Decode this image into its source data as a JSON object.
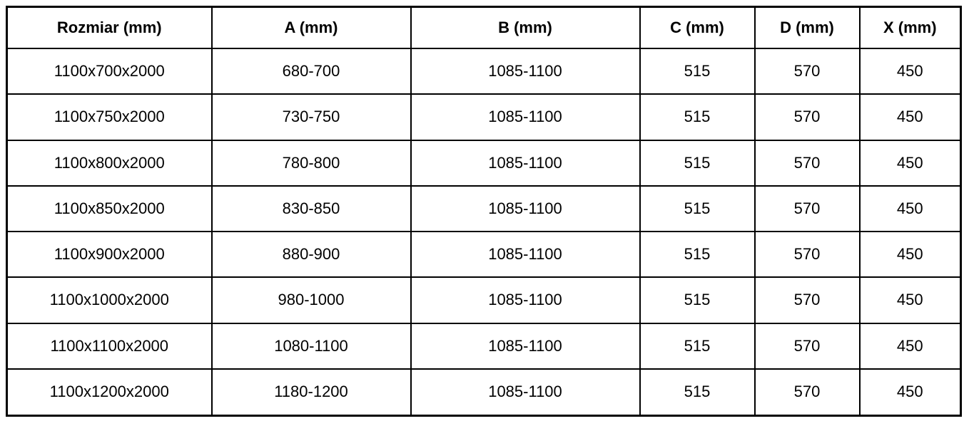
{
  "table": {
    "columns": [
      "Rozmiar (mm)",
      "A (mm)",
      "B (mm)",
      "C (mm)",
      "D (mm)",
      "X (mm)"
    ],
    "rows": [
      [
        "1100x700x2000",
        "680-700",
        "1085-1100",
        "515",
        "570",
        "450"
      ],
      [
        "1100x750x2000",
        "730-750",
        "1085-1100",
        "515",
        "570",
        "450"
      ],
      [
        "1100x800x2000",
        "780-800",
        "1085-1100",
        "515",
        "570",
        "450"
      ],
      [
        "1100x850x2000",
        "830-850",
        "1085-1100",
        "515",
        "570",
        "450"
      ],
      [
        "1100x900x2000",
        "880-900",
        "1085-1100",
        "515",
        "570",
        "450"
      ],
      [
        "1100x1000x2000",
        "980-1000",
        "1085-1100",
        "515",
        "570",
        "450"
      ],
      [
        "1100x1100x2000",
        "1080-1100",
        "1085-1100",
        "515",
        "570",
        "450"
      ],
      [
        "1100x1200x2000",
        "1180-1200",
        "1085-1100",
        "515",
        "570",
        "450"
      ]
    ],
    "colors": {
      "border": "#000000",
      "text": "#000000",
      "background": "#ffffff"
    }
  }
}
